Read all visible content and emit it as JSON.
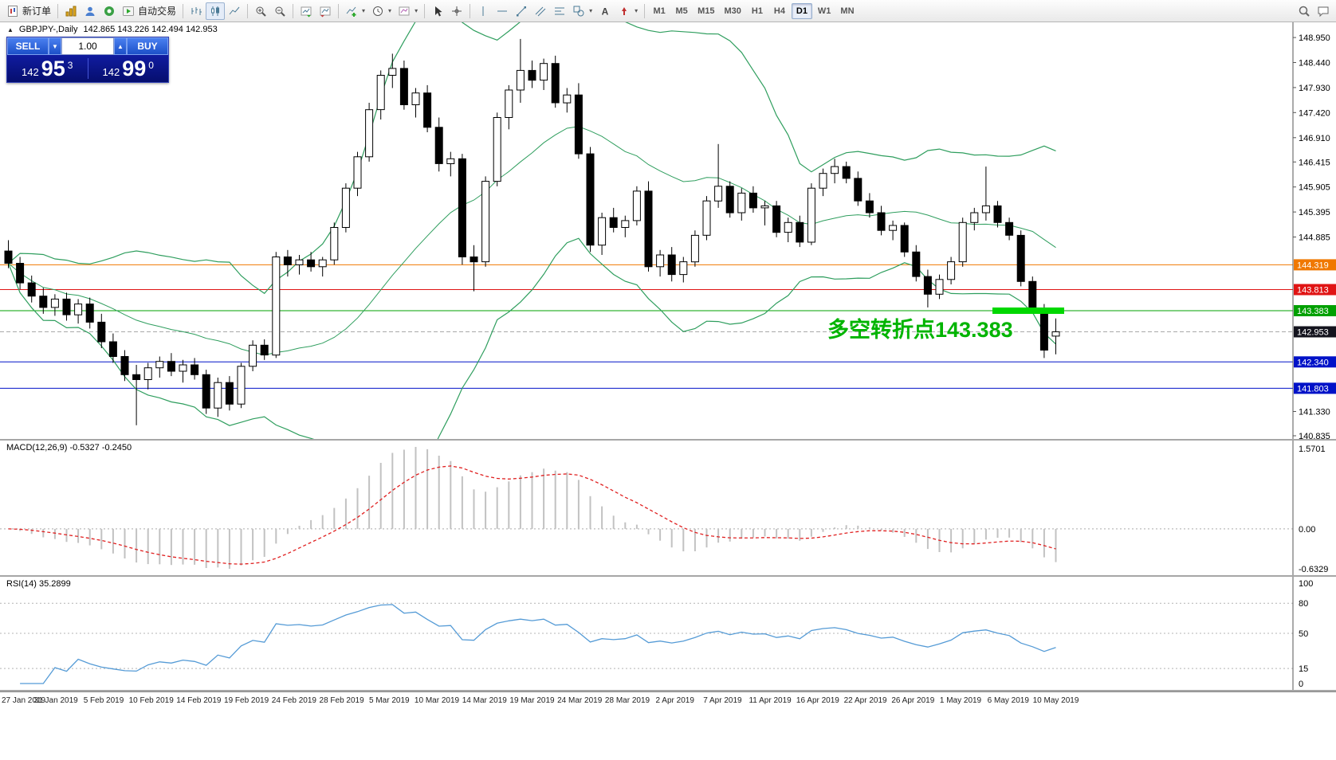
{
  "toolbar": {
    "new_order_label": "新订单",
    "autotrading_label": "自动交易",
    "timeframes": [
      {
        "label": "M1",
        "active": false
      },
      {
        "label": "M5",
        "active": false
      },
      {
        "label": "M15",
        "active": false
      },
      {
        "label": "M30",
        "active": false
      },
      {
        "label": "H1",
        "active": false
      },
      {
        "label": "H4",
        "active": false
      },
      {
        "label": "D1",
        "active": true
      },
      {
        "label": "W1",
        "active": false
      },
      {
        "label": "MN",
        "active": false
      }
    ]
  },
  "chart": {
    "symbol_period": "GBPJPY-,Daily",
    "ohlc_text": "142.865 143.226 142.494 142.953"
  },
  "trade_panel": {
    "sell_label": "SELL",
    "buy_label": "BUY",
    "volume": "1.00",
    "sell_price_prefix": "142",
    "sell_price_big": "95",
    "sell_price_sup": "3",
    "buy_price_prefix": "142",
    "buy_price_big": "99",
    "buy_price_sup": "0"
  },
  "annotation": {
    "text": "多空转折点143.383",
    "color": "#00b400"
  },
  "macd": {
    "label": "MACD(12,26,9) -0.5327 -0.2450",
    "ticks": {
      "max": "1.5701",
      "zero": "0.00",
      "min": "-0.6329"
    }
  },
  "rsi": {
    "label": "RSI(14) 35.2899",
    "ticks": [
      {
        "label": "100",
        "value": 100
      },
      {
        "label": "80",
        "value": 80
      },
      {
        "label": "50",
        "value": 50
      },
      {
        "label": "15",
        "value": 15
      },
      {
        "label": "0",
        "value": 0
      }
    ],
    "lines": [
      80,
      50,
      15
    ]
  },
  "chart_data": {
    "type": "candlestick",
    "symbol": "GBPJPY-",
    "period": "Daily",
    "current": {
      "open": 142.865,
      "high": 143.226,
      "low": 142.494,
      "close": 142.953
    },
    "ylim": [
      140.77,
      149.26
    ],
    "price_ticks": [
      {
        "label": "148.950",
        "value": 148.95
      },
      {
        "label": "148.440",
        "value": 148.44
      },
      {
        "label": "147.930",
        "value": 147.93
      },
      {
        "label": "147.420",
        "value": 147.42
      },
      {
        "label": "146.910",
        "value": 146.91
      },
      {
        "label": "146.415",
        "value": 146.415
      },
      {
        "label": "145.905",
        "value": 145.905
      },
      {
        "label": "145.395",
        "value": 145.395
      },
      {
        "label": "144.885",
        "value": 144.885
      },
      {
        "label": "141.330",
        "value": 141.33
      },
      {
        "label": "140.835",
        "value": 140.835
      }
    ],
    "hlines": [
      {
        "price": 144.319,
        "label": "144.319",
        "color": "#f07800"
      },
      {
        "price": 143.813,
        "label": "143.813",
        "color": "#e01414"
      },
      {
        "price": 143.383,
        "label": "143.383",
        "color": "#00a000"
      },
      {
        "price": 142.34,
        "label": "142.340",
        "color": "#0012c8"
      },
      {
        "price": 141.803,
        "label": "141.803",
        "color": "#0012c8"
      }
    ],
    "current_price_label": {
      "label": "142.953",
      "bg": "#14141e"
    },
    "highlight": {
      "price": 143.383,
      "start_candle": 85,
      "end_candle": 90,
      "color": "#00d800"
    },
    "bollinger": {
      "period": 20,
      "deviation": 2,
      "color": "#2f9e5e"
    },
    "macd_settings": {
      "fast": 12,
      "slow": 26,
      "signal": 9,
      "values": [
        -0.5327,
        -0.245
      ]
    },
    "rsi_settings": {
      "period": 14,
      "value": 35.2899
    },
    "date_labels": [
      "27 Jan 2019",
      "31 Jan 2019",
      "5 Feb 2019",
      "10 Feb 2019",
      "14 Feb 2019",
      "19 Feb 2019",
      "24 Feb 2019",
      "28 Feb 2019",
      "5 Mar 2019",
      "10 Mar 2019",
      "14 Mar 2019",
      "19 Mar 2019",
      "24 Mar 2019",
      "28 Mar 2019",
      "2 Apr 2019",
      "7 Apr 2019",
      "11 Apr 2019",
      "16 Apr 2019",
      "22 Apr 2019",
      "26 Apr 2019",
      "1 May 2019",
      "6 May 2019",
      "10 May 2019"
    ],
    "candles": [
      [
        144.6,
        144.82,
        144.25,
        144.35
      ],
      [
        144.35,
        144.48,
        143.82,
        143.95
      ],
      [
        143.95,
        144.1,
        143.55,
        143.68
      ],
      [
        143.68,
        143.85,
        143.32,
        143.45
      ],
      [
        143.45,
        143.72,
        143.28,
        143.62
      ],
      [
        143.62,
        143.75,
        143.18,
        143.3
      ],
      [
        143.3,
        143.62,
        143.12,
        143.52
      ],
      [
        143.52,
        143.65,
        143.02,
        143.15
      ],
      [
        143.15,
        143.32,
        142.62,
        142.75
      ],
      [
        142.75,
        142.92,
        142.32,
        142.45
      ],
      [
        142.45,
        142.58,
        141.95,
        142.08
      ],
      [
        142.08,
        142.28,
        141.05,
        141.98
      ],
      [
        141.98,
        142.32,
        141.78,
        142.22
      ],
      [
        142.22,
        142.45,
        142.02,
        142.35
      ],
      [
        142.35,
        142.52,
        142.05,
        142.15
      ],
      [
        142.15,
        142.38,
        141.92,
        142.28
      ],
      [
        142.28,
        142.42,
        141.98,
        142.08
      ],
      [
        142.08,
        142.18,
        141.28,
        141.4
      ],
      [
        141.4,
        142.02,
        141.22,
        141.92
      ],
      [
        141.92,
        142.05,
        141.35,
        141.48
      ],
      [
        141.48,
        142.32,
        141.4,
        142.25
      ],
      [
        142.25,
        142.78,
        142.15,
        142.68
      ],
      [
        142.68,
        142.8,
        142.38,
        142.48
      ],
      [
        142.48,
        144.58,
        142.42,
        144.48
      ],
      [
        144.48,
        144.62,
        144.08,
        144.32
      ],
      [
        144.32,
        144.52,
        144.12,
        144.42
      ],
      [
        144.42,
        144.58,
        144.18,
        144.28
      ],
      [
        144.28,
        144.48,
        144.08,
        144.42
      ],
      [
        144.42,
        145.18,
        144.32,
        145.08
      ],
      [
        145.08,
        145.98,
        144.98,
        145.88
      ],
      [
        145.88,
        146.62,
        145.72,
        146.52
      ],
      [
        146.52,
        147.62,
        146.42,
        147.48
      ],
      [
        147.48,
        148.28,
        147.28,
        148.18
      ],
      [
        148.18,
        148.62,
        147.92,
        148.32
      ],
      [
        148.32,
        148.48,
        147.48,
        147.58
      ],
      [
        147.58,
        147.92,
        147.32,
        147.82
      ],
      [
        147.82,
        147.98,
        147.02,
        147.12
      ],
      [
        147.12,
        147.32,
        146.22,
        146.38
      ],
      [
        146.38,
        146.62,
        146.12,
        146.48
      ],
      [
        146.48,
        146.58,
        144.32,
        144.48
      ],
      [
        144.48,
        144.72,
        143.78,
        144.38
      ],
      [
        144.38,
        146.12,
        144.28,
        146.02
      ],
      [
        146.02,
        147.42,
        145.92,
        147.32
      ],
      [
        147.32,
        147.98,
        147.08,
        147.88
      ],
      [
        147.88,
        148.92,
        147.62,
        148.28
      ],
      [
        148.28,
        148.48,
        147.92,
        148.08
      ],
      [
        148.08,
        148.52,
        147.88,
        148.42
      ],
      [
        148.42,
        148.58,
        147.52,
        147.62
      ],
      [
        147.62,
        147.92,
        147.42,
        147.78
      ],
      [
        147.78,
        148.02,
        146.48,
        146.58
      ],
      [
        146.58,
        146.72,
        144.58,
        144.72
      ],
      [
        144.72,
        145.38,
        144.52,
        145.28
      ],
      [
        145.28,
        145.48,
        144.98,
        145.08
      ],
      [
        145.08,
        145.32,
        144.88,
        145.22
      ],
      [
        145.22,
        145.92,
        145.12,
        145.82
      ],
      [
        145.82,
        146.02,
        144.18,
        144.28
      ],
      [
        144.28,
        144.62,
        144.08,
        144.52
      ],
      [
        144.52,
        144.68,
        143.98,
        144.12
      ],
      [
        144.12,
        144.48,
        143.96,
        144.38
      ],
      [
        144.38,
        145.02,
        144.28,
        144.92
      ],
      [
        144.92,
        145.72,
        144.82,
        145.62
      ],
      [
        145.62,
        146.78,
        145.48,
        145.92
      ],
      [
        145.92,
        146.02,
        145.28,
        145.38
      ],
      [
        145.38,
        145.88,
        145.22,
        145.78
      ],
      [
        145.78,
        145.92,
        145.38,
        145.48
      ],
      [
        145.48,
        145.62,
        145.12,
        145.52
      ],
      [
        145.52,
        145.62,
        144.88,
        144.98
      ],
      [
        144.98,
        145.28,
        144.78,
        145.18
      ],
      [
        145.18,
        145.32,
        144.68,
        144.78
      ],
      [
        144.78,
        145.98,
        144.72,
        145.88
      ],
      [
        145.88,
        146.28,
        145.72,
        146.18
      ],
      [
        146.18,
        146.48,
        145.98,
        146.32
      ],
      [
        146.32,
        146.42,
        145.98,
        146.08
      ],
      [
        146.08,
        146.22,
        145.52,
        145.62
      ],
      [
        145.62,
        145.78,
        145.28,
        145.38
      ],
      [
        145.38,
        145.52,
        144.92,
        145.02
      ],
      [
        145.02,
        145.22,
        144.82,
        145.12
      ],
      [
        145.12,
        145.18,
        144.48,
        144.58
      ],
      [
        144.58,
        144.72,
        143.98,
        144.08
      ],
      [
        144.08,
        144.22,
        143.45,
        143.72
      ],
      [
        143.72,
        144.12,
        143.62,
        144.02
      ],
      [
        144.02,
        144.48,
        143.92,
        144.38
      ],
      [
        144.38,
        145.28,
        144.28,
        145.18
      ],
      [
        145.18,
        145.48,
        145.02,
        145.38
      ],
      [
        145.38,
        146.32,
        145.22,
        145.52
      ],
      [
        145.52,
        145.62,
        145.08,
        145.18
      ],
      [
        145.18,
        145.28,
        144.82,
        144.92
      ],
      [
        144.92,
        145.02,
        143.88,
        143.98
      ],
      [
        143.98,
        144.08,
        143.32,
        143.42
      ],
      [
        143.42,
        143.52,
        142.42,
        142.58
      ],
      [
        142.865,
        143.226,
        142.494,
        142.953
      ]
    ]
  }
}
